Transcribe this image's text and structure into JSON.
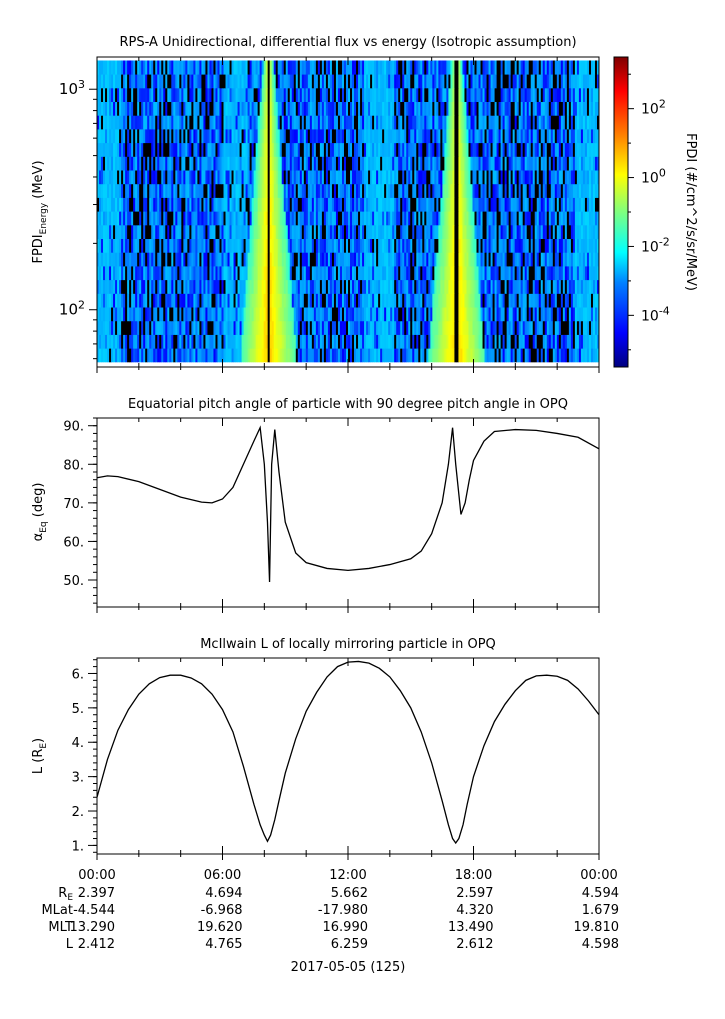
{
  "chart_data": [
    {
      "type": "heatmap",
      "title": "RPS-A Unidirectional, differential flux vs energy (Isotropic assumption)",
      "ylabel": {
        "main": "FPDI",
        "sub": "Energy",
        "unit": " (MeV)"
      },
      "yscale": "log",
      "ylim": [
        55,
        1400
      ],
      "energy_channel_range": [
        58,
        1350
      ],
      "yticks": [
        {
          "value": 100,
          "base": "10",
          "exp": "2"
        },
        {
          "value": 1000,
          "base": "10",
          "exp": "3"
        }
      ],
      "colorbar": {
        "label": "FPDI (#/cm^2/s/sr/MeV)",
        "scale": "log",
        "range_log10": [
          -5.5,
          3.5
        ],
        "ticks": [
          {
            "value": -4,
            "base": "10",
            "exp": "-4"
          },
          {
            "value": -2,
            "base": "10",
            "exp": "-2"
          },
          {
            "value": 0,
            "base": "10",
            "exp": "0"
          },
          {
            "value": 2,
            "base": "10",
            "exp": "2"
          }
        ],
        "colormap": [
          "#00007f",
          "#0000ff",
          "#007fff",
          "#00ffff",
          "#7fff7f",
          "#ffff00",
          "#ff7f00",
          "#ff0000",
          "#7f0000"
        ]
      },
      "xlim_hours": [
        0,
        24
      ],
      "features_hours": [
        {
          "center": 8.2,
          "note": "radiation belt passage"
        },
        {
          "center": 17.2,
          "note": "radiation belt passage"
        }
      ],
      "background_level_log10": -3
    },
    {
      "type": "line",
      "title": "Equatorial pitch angle of particle with 90 degree pitch angle in OPQ",
      "ylabel": {
        "main": "α",
        "sub": "Eq",
        "unit": " (deg)"
      },
      "ylim": [
        43,
        92
      ],
      "yticks": [
        50,
        60,
        70,
        80,
        90
      ],
      "xlim_hours": [
        0,
        24
      ],
      "x": [
        0,
        0.5,
        1,
        2,
        3,
        4,
        5,
        5.5,
        6,
        6.5,
        7,
        7.5,
        7.8,
        8.0,
        8.15,
        8.25,
        8.35,
        8.5,
        8.7,
        9,
        9.5,
        10,
        11,
        12,
        13,
        14,
        15,
        15.5,
        16,
        16.5,
        16.8,
        17.0,
        17.15,
        17.4,
        17.6,
        17.8,
        18,
        18.5,
        19,
        20,
        21,
        22,
        23,
        24
      ],
      "y": [
        76.5,
        77,
        76.8,
        75.5,
        73.5,
        71.5,
        70.2,
        70,
        71,
        74,
        80,
        86,
        89.5,
        80,
        65,
        49.5,
        80,
        89,
        78,
        65,
        57,
        54.5,
        53,
        52.5,
        53,
        54,
        55.5,
        57.5,
        62,
        70,
        80,
        89.5,
        80,
        67,
        70,
        76,
        81,
        86,
        88.5,
        89,
        88.8,
        88,
        87,
        84
      ]
    },
    {
      "type": "line",
      "title": "McIlwain L of locally mirroring particle in OPQ",
      "ylabel": {
        "main": "L (R",
        "sub": "E",
        "unit": ")"
      },
      "ylim": [
        0.75,
        6.45
      ],
      "yticks": [
        1,
        2,
        3,
        4,
        5,
        6
      ],
      "xlim_hours": [
        0,
        24
      ],
      "x": [
        0,
        0.5,
        1,
        1.5,
        2,
        2.5,
        3,
        3.5,
        4,
        4.5,
        5,
        5.5,
        6,
        6.5,
        7,
        7.5,
        7.8,
        8.0,
        8.15,
        8.3,
        8.5,
        8.7,
        9,
        9.5,
        10,
        10.5,
        11,
        11.5,
        12,
        12.5,
        13,
        13.5,
        14,
        14.5,
        15,
        15.5,
        16,
        16.5,
        16.8,
        17.0,
        17.15,
        17.3,
        17.5,
        17.7,
        18,
        18.5,
        19,
        19.5,
        20,
        20.5,
        21,
        21.5,
        22,
        22.5,
        23,
        23.5,
        24
      ],
      "y": [
        2.4,
        3.5,
        4.35,
        4.95,
        5.4,
        5.7,
        5.88,
        5.95,
        5.95,
        5.87,
        5.7,
        5.4,
        4.95,
        4.3,
        3.3,
        2.2,
        1.6,
        1.3,
        1.12,
        1.3,
        1.75,
        2.3,
        3.1,
        4.1,
        4.9,
        5.45,
        5.9,
        6.2,
        6.33,
        6.35,
        6.3,
        6.15,
        5.9,
        5.5,
        5.0,
        4.3,
        3.4,
        2.3,
        1.6,
        1.2,
        1.07,
        1.2,
        1.6,
        2.2,
        3.0,
        3.9,
        4.6,
        5.1,
        5.5,
        5.8,
        5.93,
        5.95,
        5.92,
        5.8,
        5.55,
        5.2,
        4.8
      ]
    }
  ],
  "time_axis": {
    "ticks": [
      {
        "hour": 0,
        "label": "00:00"
      },
      {
        "hour": 6,
        "label": "06:00"
      },
      {
        "hour": 12,
        "label": "12:00"
      },
      {
        "hour": 18,
        "label": "18:00"
      },
      {
        "hour": 24,
        "label": "00:00"
      }
    ],
    "minor_tick_step_hours": 2,
    "date_label": "2017-05-05 (125)"
  },
  "ephemeris": {
    "rows": [
      {
        "label": "R",
        "label_sub": "E",
        "values": [
          "2.397",
          "4.694",
          "5.662",
          "2.597",
          "4.594"
        ]
      },
      {
        "label": "MLat",
        "label_sub": "",
        "values": [
          "-4.544",
          "-6.968",
          "-17.980",
          "4.320",
          "1.679"
        ]
      },
      {
        "label": "MLT",
        "label_sub": "",
        "values": [
          "13.290",
          "19.620",
          "16.990",
          "13.490",
          "19.810"
        ]
      },
      {
        "label": "L",
        "label_sub": "",
        "values": [
          "2.412",
          "4.765",
          "6.259",
          "2.612",
          "4.598"
        ]
      }
    ]
  }
}
